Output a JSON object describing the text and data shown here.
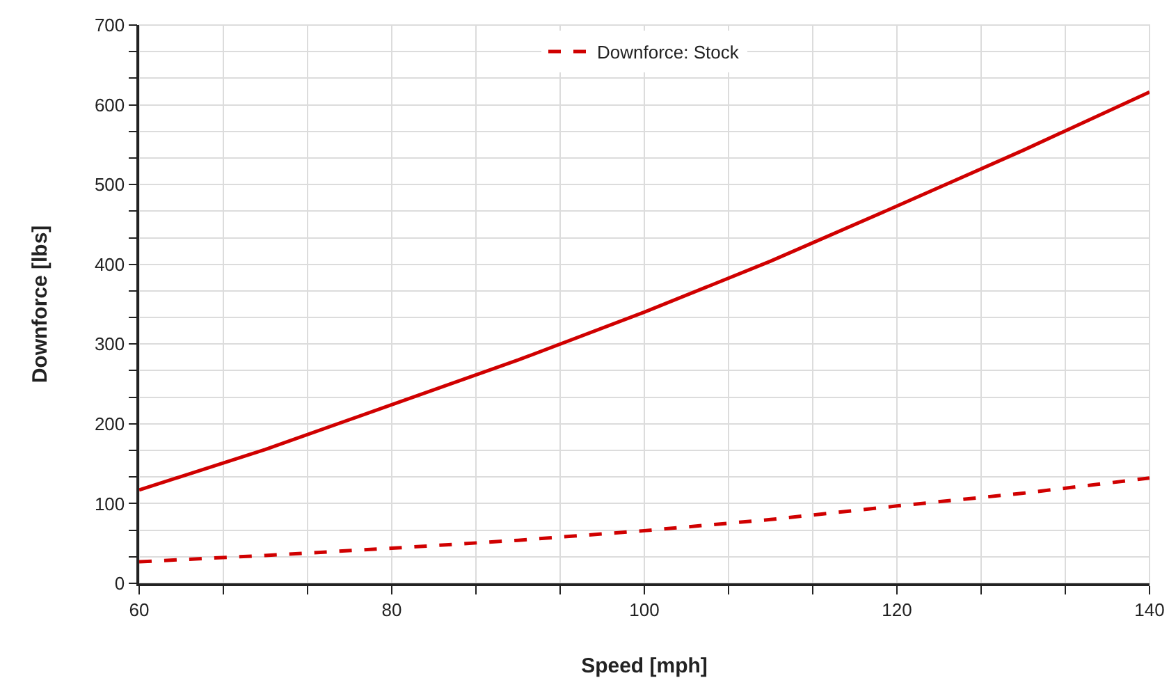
{
  "chart_data": {
    "type": "line",
    "xlabel": "Speed [mph]",
    "ylabel": "Downforce [lbs]",
    "x": [
      60,
      70,
      80,
      90,
      100,
      110,
      120,
      130,
      140
    ],
    "series": [
      {
        "color": "#d00000",
        "line_style": "solid",
        "values": [
          117,
          168,
          224,
          280,
          340,
          404,
          473,
          543,
          616
        ]
      },
      {
        "name": "Downforce: Stock",
        "color": "#d00000",
        "line_style": "dashed",
        "values": [
          27,
          35,
          44,
          54,
          66,
          80,
          97,
          113,
          132
        ]
      }
    ],
    "xlim": [
      60,
      140
    ],
    "xticks": [
      60,
      {
        "value": 66.67,
        "label": null
      },
      {
        "value": 73.33,
        "label": null
      },
      80,
      {
        "value": 86.67,
        "label": null
      },
      {
        "value": 93.33,
        "label": null
      },
      100,
      {
        "value": 106.67,
        "label": null
      },
      {
        "value": 113.33,
        "label": null
      },
      120,
      {
        "value": 126.67,
        "label": null
      },
      {
        "value": 133.33,
        "label": null
      },
      140
    ],
    "ylim": [
      0,
      700
    ],
    "yticks": [
      0,
      {
        "value": 33.33,
        "label": null
      },
      {
        "value": 66.67,
        "label": null
      },
      100,
      {
        "value": 133.33,
        "label": null
      },
      {
        "value": 166.67,
        "label": null
      },
      200,
      {
        "value": 233.33,
        "label": null
      },
      {
        "value": 266.67,
        "label": null
      },
      300,
      {
        "value": 333.33,
        "label": null
      },
      {
        "value": 366.67,
        "label": null
      },
      400,
      {
        "value": 433.33,
        "label": null
      },
      {
        "value": 466.67,
        "label": null
      },
      500,
      {
        "value": 533.33,
        "label": null
      },
      {
        "value": 566.67,
        "label": null
      },
      600,
      {
        "value": 633.33,
        "label": null
      },
      {
        "value": 666.67,
        "label": null
      },
      700
    ],
    "grid": true,
    "legend": "top"
  }
}
